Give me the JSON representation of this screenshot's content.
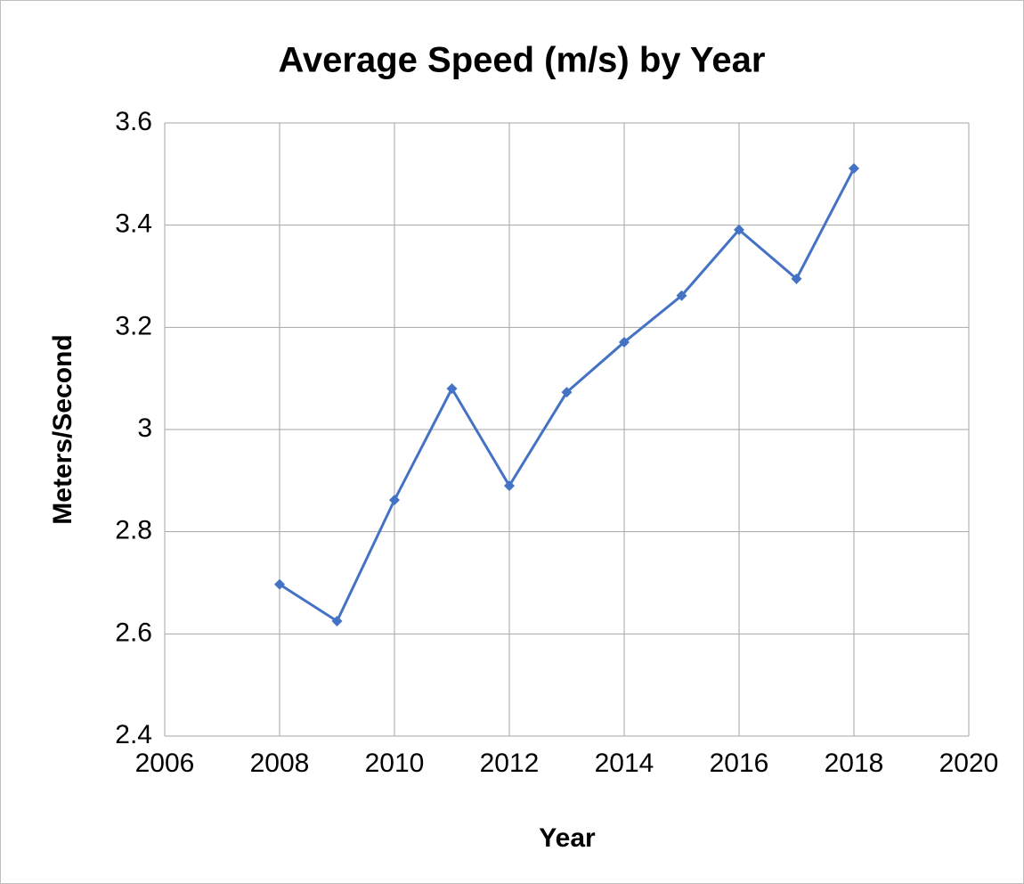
{
  "chart_data": {
    "type": "line",
    "title": "Average Speed (m/s) by Year",
    "x_label": "Year",
    "y_label": "Meters/Second",
    "x": [
      2008,
      2009,
      2010,
      2011,
      2012,
      2013,
      2014,
      2015,
      2016,
      2017,
      2018
    ],
    "values": [
      2.697,
      2.625,
      2.862,
      3.08,
      2.89,
      3.073,
      3.171,
      3.262,
      3.391,
      3.295,
      3.511
    ],
    "color": "#4472c4",
    "xlim": [
      2006,
      2020
    ],
    "xticks": [
      2006,
      2008,
      2010,
      2012,
      2014,
      2016,
      2018,
      2020
    ],
    "ylim": [
      2.4,
      3.6
    ],
    "yticks": [
      2.4,
      2.6,
      2.8,
      3,
      3.2,
      3.4,
      3.6
    ],
    "grid": true,
    "marker": "diamond"
  }
}
